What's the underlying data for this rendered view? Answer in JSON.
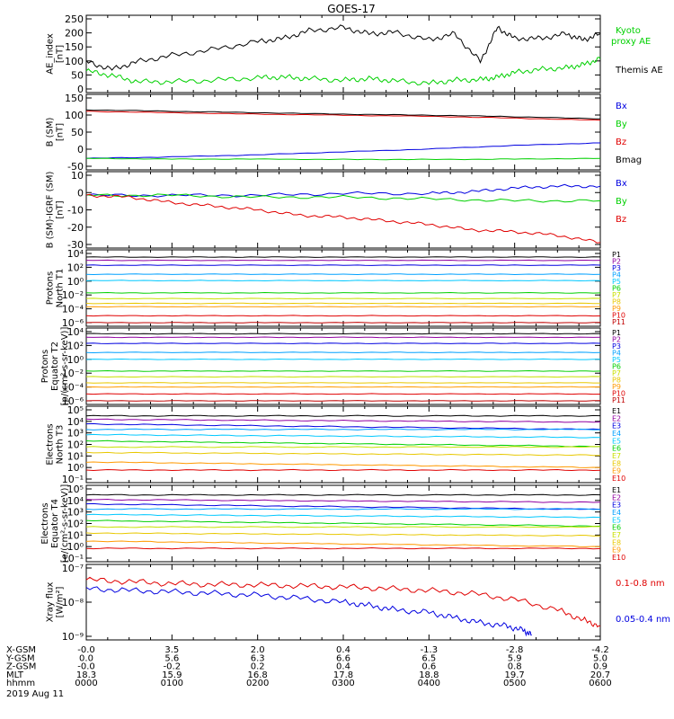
{
  "title": "GOES-17",
  "colors": {
    "black": "#000000",
    "red": "#e00000",
    "green": "#00d000",
    "blue": "#0000e0",
    "yellow": "#e8c800",
    "orange": "#ff9a00",
    "cyan": "#00c8ff",
    "purple": "#9000a0"
  },
  "chart_data": [
    {
      "type": "line",
      "ylabel": [
        "AE_index",
        "[nT]"
      ],
      "yticks": [
        "250",
        "200",
        "150",
        "100",
        "50",
        "0"
      ],
      "ylim": [
        0,
        250
      ],
      "legend": [
        {
          "text": "Kyoto",
          "color": "#00d000"
        },
        {
          "text": "proxy AE",
          "color": "#00d000"
        },
        {
          "text": "Themis AE",
          "color": "#000000"
        }
      ],
      "series": [
        {
          "name": "Kyoto proxy AE",
          "color": "#00d000",
          "x": [
            0,
            0.3,
            0.6,
            1.0,
            1.5,
            2.0,
            2.3,
            2.6,
            3.0,
            3.3,
            3.6,
            4.0,
            4.3,
            4.6,
            4.8,
            5.0,
            5.3,
            5.6,
            5.8,
            6.0
          ],
          "y": [
            70,
            55,
            35,
            35,
            40,
            48,
            50,
            45,
            40,
            45,
            38,
            30,
            40,
            42,
            50,
            65,
            75,
            80,
            90,
            110
          ]
        },
        {
          "name": "Themis AE",
          "color": "#000000",
          "x": [
            0,
            0.3,
            0.6,
            1.0,
            1.5,
            2.0,
            2.3,
            2.6,
            3.0,
            3.3,
            3.6,
            4.0,
            4.3,
            4.6,
            4.8,
            5.0,
            5.3,
            5.6,
            5.8,
            6.0
          ],
          "y": [
            100,
            75,
            100,
            120,
            140,
            165,
            175,
            200,
            210,
            190,
            195,
            170,
            190,
            100,
            210,
            175,
            175,
            190,
            170,
            190
          ]
        }
      ]
    },
    {
      "type": "line",
      "ylabel": [
        "B (SM)",
        "[nT]"
      ],
      "yticks": [
        "150",
        "100",
        "50",
        "0",
        "-50"
      ],
      "ylim": [
        -60,
        150
      ],
      "legend": [
        {
          "text": "Bx",
          "color": "#0000e0"
        },
        {
          "text": "By",
          "color": "#00d000"
        },
        {
          "text": "Bz",
          "color": "#e00000"
        },
        {
          "text": "Bmag",
          "color": "#000000"
        }
      ],
      "series": [
        {
          "name": "Bx",
          "color": "#0000e0",
          "x": [
            0,
            1,
            2,
            3,
            4,
            5,
            6
          ],
          "y": [
            -28,
            -24,
            -18,
            -10,
            -2,
            8,
            15
          ]
        },
        {
          "name": "By",
          "color": "#00d000",
          "x": [
            0,
            1,
            2,
            3,
            4,
            5,
            6
          ],
          "y": [
            -28,
            -30,
            -30,
            -31,
            -31,
            -30,
            -28
          ]
        },
        {
          "name": "Bz",
          "color": "#e00000",
          "x": [
            0,
            1,
            2,
            3,
            4,
            5,
            6
          ],
          "y": [
            103,
            99,
            95,
            92,
            89,
            84,
            78
          ]
        },
        {
          "name": "Bmag",
          "color": "#000000",
          "x": [
            0,
            1,
            2,
            3,
            4,
            5,
            6
          ],
          "y": [
            107,
            103,
            99,
            95,
            92,
            88,
            82
          ]
        }
      ]
    },
    {
      "type": "line",
      "ylabel": [
        "B (SM)-IGRF (SM)",
        "[nT]"
      ],
      "yticks": [
        "10",
        "0",
        "-10",
        "-20",
        "-30"
      ],
      "ylim": [
        -30,
        12
      ],
      "legend": [
        {
          "text": "Bx",
          "color": "#0000e0"
        },
        {
          "text": "By",
          "color": "#00d000"
        },
        {
          "text": "Bz",
          "color": "#e00000"
        }
      ],
      "series": [
        {
          "name": "Bx",
          "color": "#0000e0",
          "x": [
            0,
            1,
            2,
            3,
            4,
            4.5,
            5,
            5.5,
            6
          ],
          "y": [
            -1,
            -1,
            -1,
            0,
            0,
            1,
            3,
            4,
            4
          ]
        },
        {
          "name": "By",
          "color": "#00d000",
          "x": [
            0,
            1,
            2,
            3,
            4,
            5,
            6
          ],
          "y": [
            -1,
            -1,
            -2,
            -2,
            -3,
            -4,
            -4
          ]
        },
        {
          "name": "Bz",
          "color": "#e00000",
          "x": [
            0,
            0.5,
            1,
            1.5,
            2,
            2.5,
            3,
            3.5,
            4,
            4.5,
            5,
            5.5,
            6
          ],
          "y": [
            -1,
            -2,
            -5,
            -7,
            -9,
            -12,
            -13,
            -15,
            -17,
            -20,
            -21,
            -23,
            -27
          ]
        }
      ]
    },
    {
      "type": "line",
      "ylabel": [
        "Protons",
        "North T1"
      ],
      "log": true,
      "yticks": [
        "10⁴",
        "10²",
        "10⁰",
        "10⁻²",
        "10⁻⁴",
        "10⁻⁶"
      ],
      "channels": [
        "P1",
        "P2",
        "P3",
        "P4",
        "P5",
        "P6",
        "P7",
        "P8",
        "P9",
        "P10",
        "P11"
      ],
      "channel_colors": [
        "#000000",
        "#9000a0",
        "#0000e0",
        "#00a0ff",
        "#00c8ff",
        "#00d000",
        "#c8e000",
        "#e8c800",
        "#ff9a00",
        "#e00000",
        "#c00000"
      ],
      "levels": [
        3000,
        1000,
        200,
        10,
        1.2,
        0.02,
        0.003,
        0.0006,
        0.0002,
        1e-05,
        1e-06
      ]
    },
    {
      "type": "line",
      "ylabel": [
        "Protons",
        "Equator T2",
        "[p/(cm²-s-sr-keV)]"
      ],
      "log": true,
      "yticks": [
        "10⁴",
        "10²",
        "10⁰",
        "10⁻²",
        "10⁻⁴",
        "10⁻⁶"
      ],
      "channels": [
        "P1",
        "P2",
        "P3",
        "P4",
        "P5",
        "P6",
        "P7",
        "P8",
        "P9",
        "P10",
        "P11"
      ],
      "channel_colors": [
        "#000000",
        "#9000a0",
        "#0000e0",
        "#00a0ff",
        "#00c8ff",
        "#00d000",
        "#c8e000",
        "#e8c800",
        "#ff9a00",
        "#e00000",
        "#c00000"
      ],
      "levels": [
        5000,
        1500,
        200,
        10,
        1,
        0.02,
        0.003,
        0.0004,
        0.0001,
        1e-05,
        1e-06
      ]
    },
    {
      "type": "line",
      "ylabel": [
        "Electrons",
        "North T3"
      ],
      "log": true,
      "yticks": [
        "10⁵",
        "10⁴",
        "10³",
        "10²",
        "10¹",
        "10⁰",
        "10⁻¹"
      ],
      "channels": [
        "E1",
        "E2",
        "E3",
        "E4",
        "E5",
        "E6",
        "E7",
        "E8",
        "E9",
        "E10"
      ],
      "channel_colors": [
        "#000000",
        "#9000a0",
        "#0000e0",
        "#00a0ff",
        "#00c8ff",
        "#00d000",
        "#c8e000",
        "#e8c800",
        "#ff9a00",
        "#e00000"
      ],
      "levels": [
        30000,
        15000,
        6000,
        2000,
        700,
        200,
        60,
        20,
        3,
        0.6
      ]
    },
    {
      "type": "line",
      "ylabel": [
        "Electrons",
        "Equator T4",
        "[e/(cm²-s-sr-keV)]"
      ],
      "log": true,
      "yticks": [
        "10⁵",
        "10⁴",
        "10³",
        "10²",
        "10¹",
        "10⁰",
        "10⁻¹"
      ],
      "channels": [
        "E1",
        "E2",
        "E3",
        "E4",
        "E5",
        "E6",
        "E7",
        "E8",
        "E9",
        "E10"
      ],
      "channel_colors": [
        "#000000",
        "#9000a0",
        "#0000e0",
        "#00a0ff",
        "#00c8ff",
        "#00d000",
        "#c8e000",
        "#e8c800",
        "#ff9a00",
        "#e00000"
      ],
      "levels": [
        30000,
        12000,
        5000,
        1800,
        600,
        180,
        50,
        15,
        3,
        0.7
      ]
    },
    {
      "type": "line",
      "ylabel": [
        "Xray flux",
        "[W/m²]"
      ],
      "log": true,
      "yticks": [
        "10⁻⁷",
        "10⁻⁸",
        "10⁻⁹"
      ],
      "legend": [
        {
          "text": "0.1-0.8 nm",
          "color": "#e00000"
        },
        {
          "text": "0.05-0.4 nm",
          "color": "#0000e0"
        }
      ],
      "series": [
        {
          "name": "0.1-0.8 nm",
          "color": "#e00000",
          "x": [
            0,
            0.5,
            1,
            1.5,
            2,
            2.5,
            3,
            3.5,
            4,
            4.5,
            5,
            5.5,
            5.8,
            6
          ],
          "y": [
            4.5e-08,
            4e-08,
            3.5e-08,
            3.3e-08,
            3.2e-08,
            3e-08,
            2.8e-08,
            2.5e-08,
            2.2e-08,
            1.8e-08,
            1.2e-08,
            6e-09,
            3e-09,
            2e-09
          ]
        },
        {
          "name": "0.05-0.4 nm",
          "color": "#0000e0",
          "x": [
            0,
            0.5,
            1,
            1.5,
            2,
            2.5,
            3,
            3.3,
            3.6,
            4,
            4.3,
            4.6,
            4.9,
            5.1,
            5.2
          ],
          "y": [
            2.5e-08,
            2.2e-08,
            2e-08,
            1.8e-08,
            1.6e-08,
            1.3e-08,
            1e-08,
            8e-09,
            6e-09,
            5e-09,
            3.5e-09,
            2.5e-09,
            2e-09,
            1.5e-09,
            1.1e-09
          ]
        }
      ]
    }
  ],
  "axis_table": {
    "rows": [
      {
        "label": "X-GSM",
        "values": [
          "-0.0",
          "3.5",
          "2.0",
          "0.4",
          "-1.3",
          "-2.8",
          "-4.2"
        ]
      },
      {
        "label": "Y-GSM",
        "values": [
          "0.0",
          "5.6",
          "6.3",
          "6.6",
          "6.5",
          "5.9",
          "5.0"
        ]
      },
      {
        "label": "Z-GSM",
        "values": [
          "-0.0",
          "-0.2",
          "0.2",
          "0.4",
          "0.6",
          "0.8",
          "0.9"
        ]
      },
      {
        "label": "MLT",
        "values": [
          "18.3",
          "15.9",
          "16.8",
          "17.8",
          "18.8",
          "19.7",
          "20.7"
        ]
      },
      {
        "label": "hhmm",
        "values": [
          "0000",
          "0100",
          "0200",
          "0300",
          "0400",
          "0500",
          "0600"
        ]
      }
    ],
    "date": "2019 Aug 11"
  }
}
